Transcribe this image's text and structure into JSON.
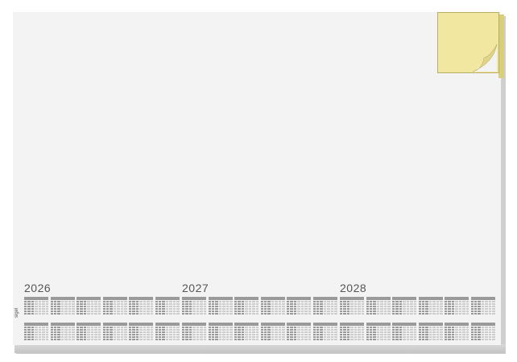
{
  "years": [
    "2026",
    "2027",
    "2028"
  ],
  "logo": "sigel",
  "colors": {
    "pad": "#f3f3f3",
    "note": "#f1e7a1",
    "edge": "#cfcfcf"
  }
}
